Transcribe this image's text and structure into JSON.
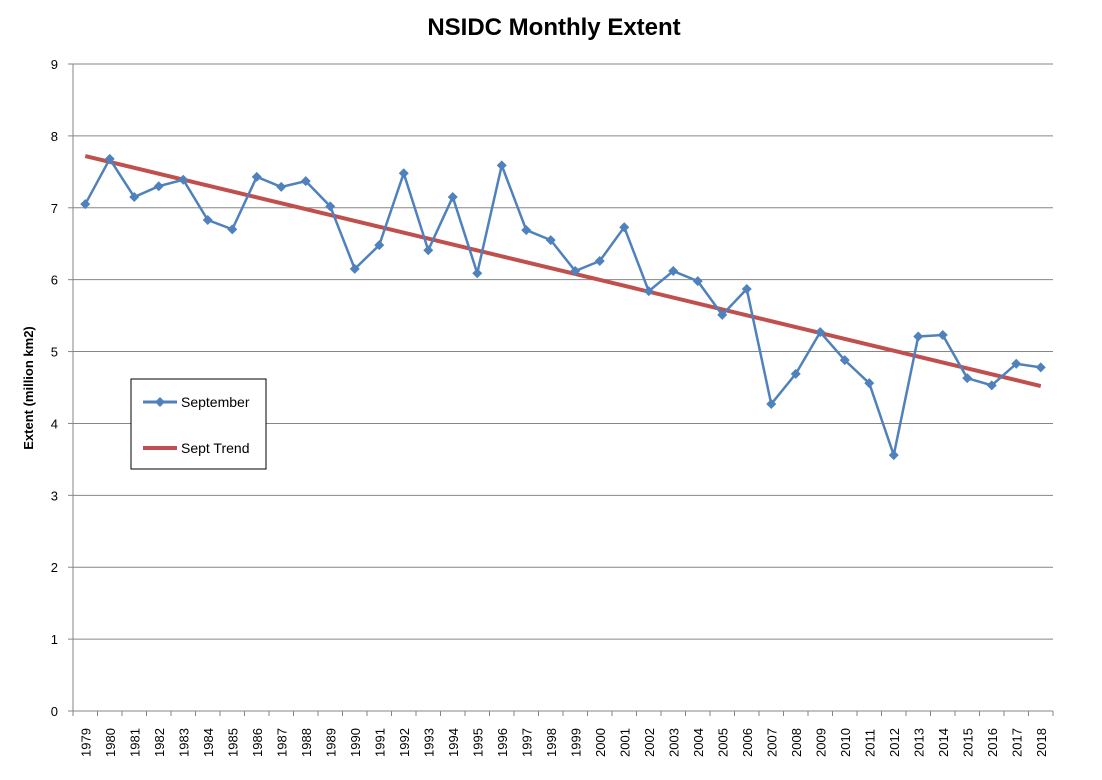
{
  "chart_data": {
    "type": "line",
    "title": "NSIDC Monthly Extent",
    "xlabel": "",
    "ylabel": "Extent (million km2)",
    "ylim": [
      0,
      9
    ],
    "yticks": [
      "0",
      "1",
      "2",
      "3",
      "4",
      "5",
      "6",
      "7",
      "8",
      "9"
    ],
    "grid": true,
    "legend_position": "left-middle",
    "categories": [
      "1979",
      "1980",
      "1981",
      "1982",
      "1983",
      "1984",
      "1985",
      "1986",
      "1987",
      "1988",
      "1989",
      "1990",
      "1991",
      "1992",
      "1993",
      "1994",
      "1995",
      "1996",
      "1997",
      "1998",
      "1999",
      "2000",
      "2001",
      "2002",
      "2003",
      "2004",
      "2005",
      "2006",
      "2007",
      "2008",
      "2009",
      "2010",
      "2011",
      "2012",
      "2013",
      "2014",
      "2015",
      "2016",
      "2017",
      "2018"
    ],
    "series": [
      {
        "name": "September",
        "color": "#4F81BD",
        "marker": "diamond",
        "values": [
          7.05,
          7.68,
          7.15,
          7.3,
          7.39,
          6.83,
          6.7,
          7.43,
          7.29,
          7.37,
          7.02,
          6.15,
          6.48,
          7.48,
          6.41,
          7.15,
          6.09,
          7.59,
          6.69,
          6.55,
          6.12,
          6.26,
          6.73,
          5.84,
          6.12,
          5.98,
          5.51,
          5.87,
          4.27,
          4.69,
          5.27,
          4.88,
          4.56,
          3.56,
          5.21,
          5.23,
          4.63,
          4.53,
          4.83,
          4.78
        ]
      },
      {
        "name": "Sept Trend",
        "color": "#C0504D",
        "start": 7.72,
        "end": 4.52
      }
    ]
  }
}
